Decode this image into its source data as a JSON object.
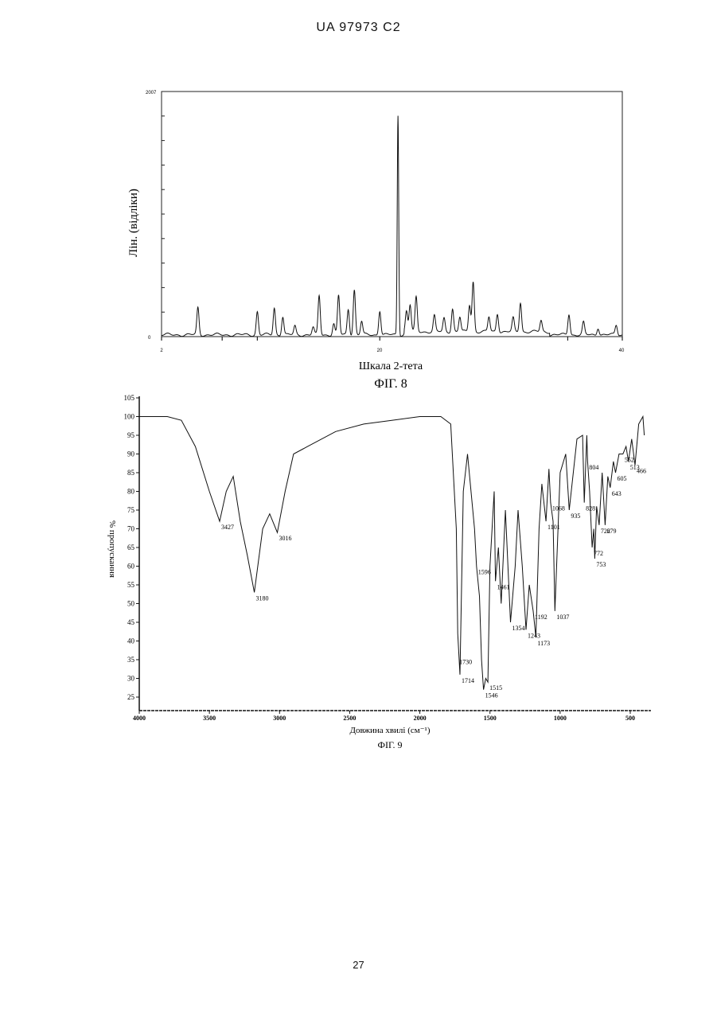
{
  "header": {
    "patent_id": "UA   97973   C2"
  },
  "page_number": "27",
  "figures": [
    {
      "caption": "ФІГ. 8",
      "chart_data": {
        "type": "line",
        "xlabel": "Шкала 2-тета",
        "ylabel": "Лін. (відліки)",
        "xlim": [
          2,
          40
        ],
        "ylim": [
          0,
          2007
        ],
        "x_tick_labels": [
          "2",
          "20",
          "40"
        ],
        "y_tick_labels": [
          "0",
          "2007"
        ],
        "peaks": [
          {
            "x": 5.0,
            "y": 220
          },
          {
            "x": 9.9,
            "y": 190
          },
          {
            "x": 11.3,
            "y": 220
          },
          {
            "x": 12.0,
            "y": 150
          },
          {
            "x": 13.0,
            "y": 70
          },
          {
            "x": 14.5,
            "y": 60
          },
          {
            "x": 15.0,
            "y": 320
          },
          {
            "x": 16.2,
            "y": 90
          },
          {
            "x": 16.6,
            "y": 320
          },
          {
            "x": 17.4,
            "y": 210
          },
          {
            "x": 17.9,
            "y": 370
          },
          {
            "x": 18.5,
            "y": 110
          },
          {
            "x": 20.0,
            "y": 200
          },
          {
            "x": 21.5,
            "y": 1800
          },
          {
            "x": 22.2,
            "y": 170
          },
          {
            "x": 22.5,
            "y": 220
          },
          {
            "x": 23.0,
            "y": 280
          },
          {
            "x": 24.5,
            "y": 130
          },
          {
            "x": 25.3,
            "y": 110
          },
          {
            "x": 26.0,
            "y": 190
          },
          {
            "x": 26.6,
            "y": 120
          },
          {
            "x": 27.4,
            "y": 220
          },
          {
            "x": 27.7,
            "y": 410
          },
          {
            "x": 29.0,
            "y": 120
          },
          {
            "x": 29.7,
            "y": 150
          },
          {
            "x": 31.0,
            "y": 110
          },
          {
            "x": 31.6,
            "y": 240
          },
          {
            "x": 33.3,
            "y": 90
          },
          {
            "x": 35.6,
            "y": 170
          },
          {
            "x": 36.8,
            "y": 100
          },
          {
            "x": 38.0,
            "y": 60
          },
          {
            "x": 39.5,
            "y": 80
          }
        ]
      }
    },
    {
      "caption": "ФІГ. 9",
      "chart_data": {
        "type": "line",
        "xlabel": "Довжина хвилі (см⁻¹)",
        "ylabel": "% пропускання",
        "xlim": [
          4000,
          400
        ],
        "ylim": [
          25,
          105
        ],
        "x_tick_labels": [
          "4000",
          "3500",
          "3000",
          "2500",
          "2000",
          "1500",
          "1000",
          "500"
        ],
        "y_tick_labels": [
          "25",
          "30",
          "35",
          "40",
          "45",
          "50",
          "55",
          "60",
          "65",
          "70",
          "75",
          "80",
          "85",
          "90",
          "95",
          "100",
          "105"
        ],
        "series": [
          {
            "x": [
              4000,
              3800,
              3700,
              3600,
              3500,
              3427,
              3380,
              3330,
              3280,
              3230,
              3180,
              3120,
              3070,
              3016,
              2960,
              2900,
              2800,
              2600,
              2400,
              2200,
              2000,
              1850,
              1780,
              1740,
              1730,
              1714,
              1690,
              1660,
              1610,
              1596,
              1575,
              1560,
              1546,
              1530,
              1515,
              1500,
              1470,
              1461,
              1440,
              1420,
              1390,
              1354,
              1320,
              1300,
              1270,
              1243,
              1220,
              1192,
              1173,
              1150,
              1130,
              1101,
              1080,
              1068,
              1050,
              1037,
              1000,
              960,
              935,
              880,
              840,
              828,
              810,
              804,
              790,
              772,
              760,
              753,
              740,
              722,
              700,
              679,
              660,
              643,
              620,
              605,
              580,
              552,
              530,
              513,
              490,
              466,
              440,
              410,
              400
            ],
            "y": [
              100,
              100,
              99,
              92,
              80,
              72,
              80,
              84,
              72,
              63,
              53,
              70,
              74,
              69,
              80,
              90,
              92,
              96,
              98,
              99,
              100,
              100,
              98,
              70,
              42,
              31,
              80,
              90,
              70,
              60,
              52,
              35,
              27,
              30,
              29,
              60,
              80,
              56,
              65,
              50,
              75,
              45,
              60,
              75,
              60,
              43,
              55,
              48,
              41,
              70,
              82,
              72,
              86,
              77,
              72,
              48,
              85,
              90,
              75,
              94,
              95,
              77,
              95,
              88,
              80,
              65,
              70,
              62,
              76,
              71,
              85,
              71,
              84,
              81,
              88,
              85,
              90,
              90,
              92,
              88,
              94,
              87,
              98,
              100,
              95
            ],
            "annotations": [
              {
                "x": 3427,
                "y": 72,
                "label": "3427"
              },
              {
                "x": 3180,
                "y": 53,
                "label": "3180"
              },
              {
                "x": 3016,
                "y": 69,
                "label": "3016"
              },
              {
                "x": 1730,
                "y": 36,
                "label": "1730"
              },
              {
                "x": 1714,
                "y": 31,
                "label": "1714"
              },
              {
                "x": 1596,
                "y": 60,
                "label": "1596"
              },
              {
                "x": 1546,
                "y": 27,
                "label": "1546"
              },
              {
                "x": 1515,
                "y": 29,
                "label": "1515"
              },
              {
                "x": 1461,
                "y": 56,
                "label": "1461"
              },
              {
                "x": 1354,
                "y": 45,
                "label": "1354"
              },
              {
                "x": 1243,
                "y": 43,
                "label": "1243"
              },
              {
                "x": 1192,
                "y": 48,
                "label": "1192"
              },
              {
                "x": 1173,
                "y": 41,
                "label": "1173"
              },
              {
                "x": 1101,
                "y": 72,
                "label": "1101"
              },
              {
                "x": 1068,
                "y": 77,
                "label": "1068"
              },
              {
                "x": 1037,
                "y": 48,
                "label": "1037"
              },
              {
                "x": 935,
                "y": 75,
                "label": "935"
              },
              {
                "x": 828,
                "y": 77,
                "label": "828"
              },
              {
                "x": 804,
                "y": 88,
                "label": "804"
              },
              {
                "x": 772,
                "y": 65,
                "label": "772"
              },
              {
                "x": 753,
                "y": 62,
                "label": "753"
              },
              {
                "x": 722,
                "y": 71,
                "label": "722"
              },
              {
                "x": 679,
                "y": 71,
                "label": "679"
              },
              {
                "x": 643,
                "y": 81,
                "label": "643"
              },
              {
                "x": 605,
                "y": 85,
                "label": "605"
              },
              {
                "x": 552,
                "y": 90,
                "label": "552"
              },
              {
                "x": 513,
                "y": 88,
                "label": "513"
              },
              {
                "x": 466,
                "y": 87,
                "label": "466"
              }
            ]
          }
        ]
      }
    }
  ]
}
